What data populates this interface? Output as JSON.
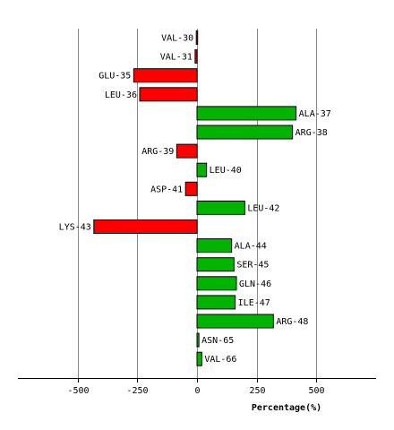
{
  "chart_data": {
    "type": "bar",
    "orientation": "horizontal",
    "xlabel": "Percentage(%)",
    "xlim": [
      -750,
      750
    ],
    "xticks": [
      -500,
      -250,
      0,
      250,
      500
    ],
    "grid": true,
    "colors": {
      "positive": "#00b400",
      "negative": "#ff0000"
    },
    "categories": [
      "VAL-30",
      "VAL-31",
      "GLU-35",
      "LEU-36",
      "ALA-37",
      "ARG-38",
      "ARG-39",
      "LEU-40",
      "ASP-41",
      "LEU-42",
      "LYS-43",
      "ALA-44",
      "SER-45",
      "GLN-46",
      "ILE-47",
      "ARG-48",
      "ASN-65",
      "VAL-66"
    ],
    "values": [
      -3,
      -8,
      -265,
      -240,
      415,
      400,
      -85,
      40,
      -48,
      200,
      -432,
      145,
      155,
      165,
      160,
      320,
      8,
      20
    ]
  }
}
